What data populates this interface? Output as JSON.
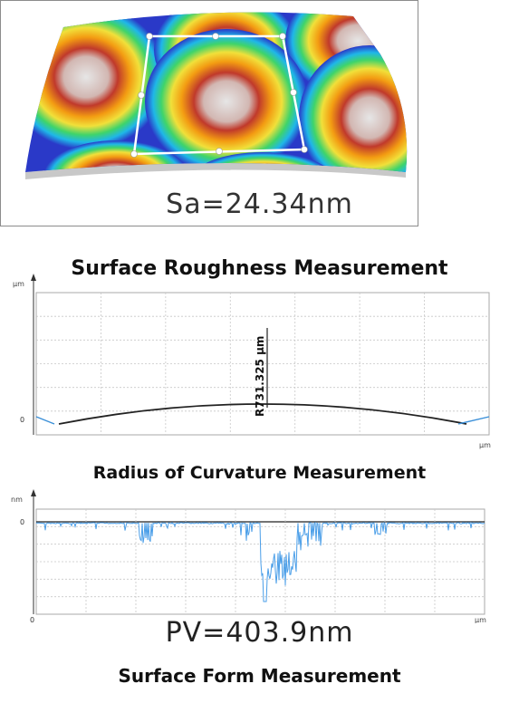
{
  "surface": {
    "sa_label": "Sa=24.34nm",
    "colors": {
      "peak": "#d8d8d8",
      "ring1": "#c0392b",
      "ring2": "#f39c12",
      "ring3": "#f1e03a",
      "ring4": "#3fd46a",
      "valley": "#2a39c8"
    }
  },
  "headings": {
    "roughness": "Surface Roughness Measurement",
    "curvature": "Radius of Curvature Measurement",
    "form": "Surface Form Measurement"
  },
  "chart_data": [
    {
      "type": "line",
      "xlabel": "µm",
      "ylabel": "µm",
      "yticks": [
        "0"
      ],
      "annotation": "R731.325 µm",
      "series": [
        {
          "x": [
            0.05,
            0.2,
            0.35,
            0.5,
            0.65,
            0.8,
            0.95
          ],
          "values": [
            0.0,
            0.55,
            0.9,
            1.0,
            0.9,
            0.55,
            0.0
          ]
        }
      ],
      "xlim": [
        0,
        1
      ],
      "ylim": [
        -0.5,
        6
      ],
      "grid": true
    },
    {
      "type": "line",
      "xlabel": "µm",
      "ylabel": "nm",
      "yticks": [
        "0"
      ],
      "xticks": [
        "0"
      ],
      "annotation": "PV=403.9nm",
      "series": [
        {
          "x": [
            0,
            0.1,
            0.2,
            0.3,
            0.4,
            0.5,
            0.52,
            0.55,
            0.6,
            0.7,
            0.8,
            0.9,
            1.0
          ],
          "values": [
            0,
            -5,
            -30,
            -10,
            -40,
            -80,
            -403.9,
            -320,
            -60,
            -20,
            -10,
            -15,
            0
          ]
        }
      ],
      "xlim": [
        0,
        1
      ],
      "ylim": [
        -420,
        30
      ],
      "grid": true
    }
  ]
}
